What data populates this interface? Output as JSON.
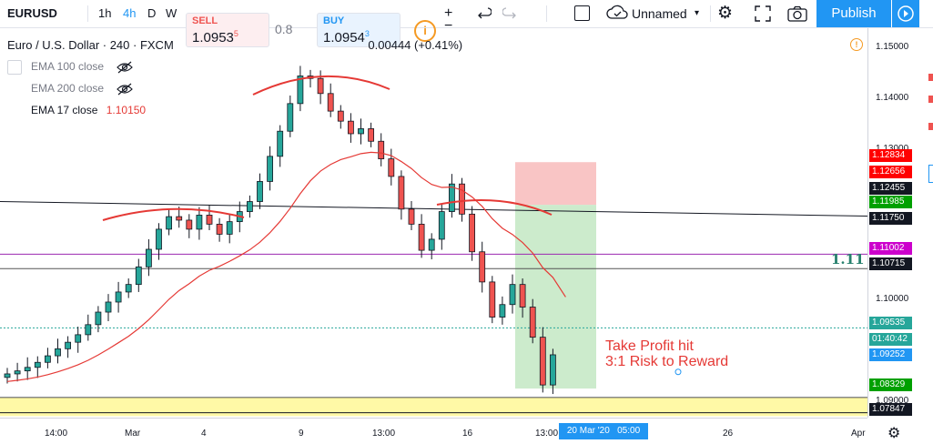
{
  "toolbar": {
    "symbol": "EURUSD",
    "timeframes": [
      "1h",
      "4h",
      "D",
      "W"
    ],
    "active_timeframe": "4h",
    "layout_name": "Unnamed",
    "publish_label": "Publish"
  },
  "ticket": {
    "sell_label": "SELL",
    "sell_price": "1.0953",
    "sell_pip": "5",
    "spread": "0.8",
    "buy_label": "BUY",
    "buy_price": "1.0954",
    "buy_pip": "3"
  },
  "legend": {
    "title": "Euro / U.S. Dollar · 240 · FXCM",
    "change": "0.00444 (+0.41%)",
    "indicators": [
      {
        "name": "EMA 100 close",
        "value": ""
      },
      {
        "name": "EMA 200 close",
        "value": ""
      },
      {
        "name": "EMA 17 close",
        "value": "1.10150"
      }
    ]
  },
  "annotations": {
    "take_profit_line1": "Take Profit hit",
    "take_profit_line2": "3:1 Risk to Reward",
    "level_label": "1.11"
  },
  "price_axis": {
    "ticks": [
      "1.15000",
      "1.14000",
      "1.13000",
      "1.10000",
      "1.09000"
    ],
    "labels": [
      {
        "text": "1.12834",
        "color": "#ff0000"
      },
      {
        "text": "1.12656",
        "color": "#ff0000"
      },
      {
        "text": "1.12455",
        "color": "#131722"
      },
      {
        "text": "1.11985",
        "color": "#00a000"
      },
      {
        "text": "1.11750",
        "color": "#131722"
      },
      {
        "text": "1.11002",
        "color": "#cc00cc"
      },
      {
        "text": "1.10715",
        "color": "#131722"
      },
      {
        "text": "1.09535",
        "color": "#26a69a"
      },
      {
        "text": "01:40:42",
        "color": "#26a69a"
      },
      {
        "text": "1.09252",
        "color": "#2196f3"
      },
      {
        "text": "1.08329",
        "color": "#00a000"
      },
      {
        "text": "1.07847",
        "color": "#131722"
      }
    ]
  },
  "time_axis": {
    "labels": [
      "14:00",
      "Mar",
      "4",
      "9",
      "13:00",
      "16",
      "13:00",
      "26",
      "Apr"
    ],
    "current": "20 Mar '20   05:00"
  },
  "chart_data": {
    "type": "candlestick",
    "symbol": "EURUSD",
    "interval": "240",
    "ylim": [
      1.0775,
      1.155
    ],
    "ema17_last": 1.1015,
    "candles_approx_close": [
      1.0862,
      1.0868,
      1.0875,
      1.0885,
      1.0898,
      1.0912,
      1.0925,
      1.094,
      1.096,
      1.0985,
      1.1005,
      1.1025,
      1.104,
      1.1075,
      1.111,
      1.115,
      1.1175,
      1.1168,
      1.115,
      1.1178,
      1.116,
      1.114,
      1.1165,
      1.1185,
      1.1205,
      1.1245,
      1.1295,
      1.1345,
      1.14,
      1.1455,
      1.145,
      1.142,
      1.1385,
      1.1365,
      1.134,
      1.135,
      1.1325,
      1.129,
      1.1255,
      1.119,
      1.116,
      1.1108,
      1.113,
      1.1185,
      1.124,
      1.118,
      1.1105,
      1.1045,
      1.0975,
      1.1,
      1.104,
      1.0995,
      1.0935,
      1.084,
      1.09
    ],
    "position": {
      "stop_zone": [
        1.11985,
        1.12834
      ],
      "target_zone": [
        1.08329,
        1.11985
      ],
      "entry": 1.11985
    },
    "horizontal_levels": [
      1.11002,
      1.10715,
      1.07847
    ]
  }
}
